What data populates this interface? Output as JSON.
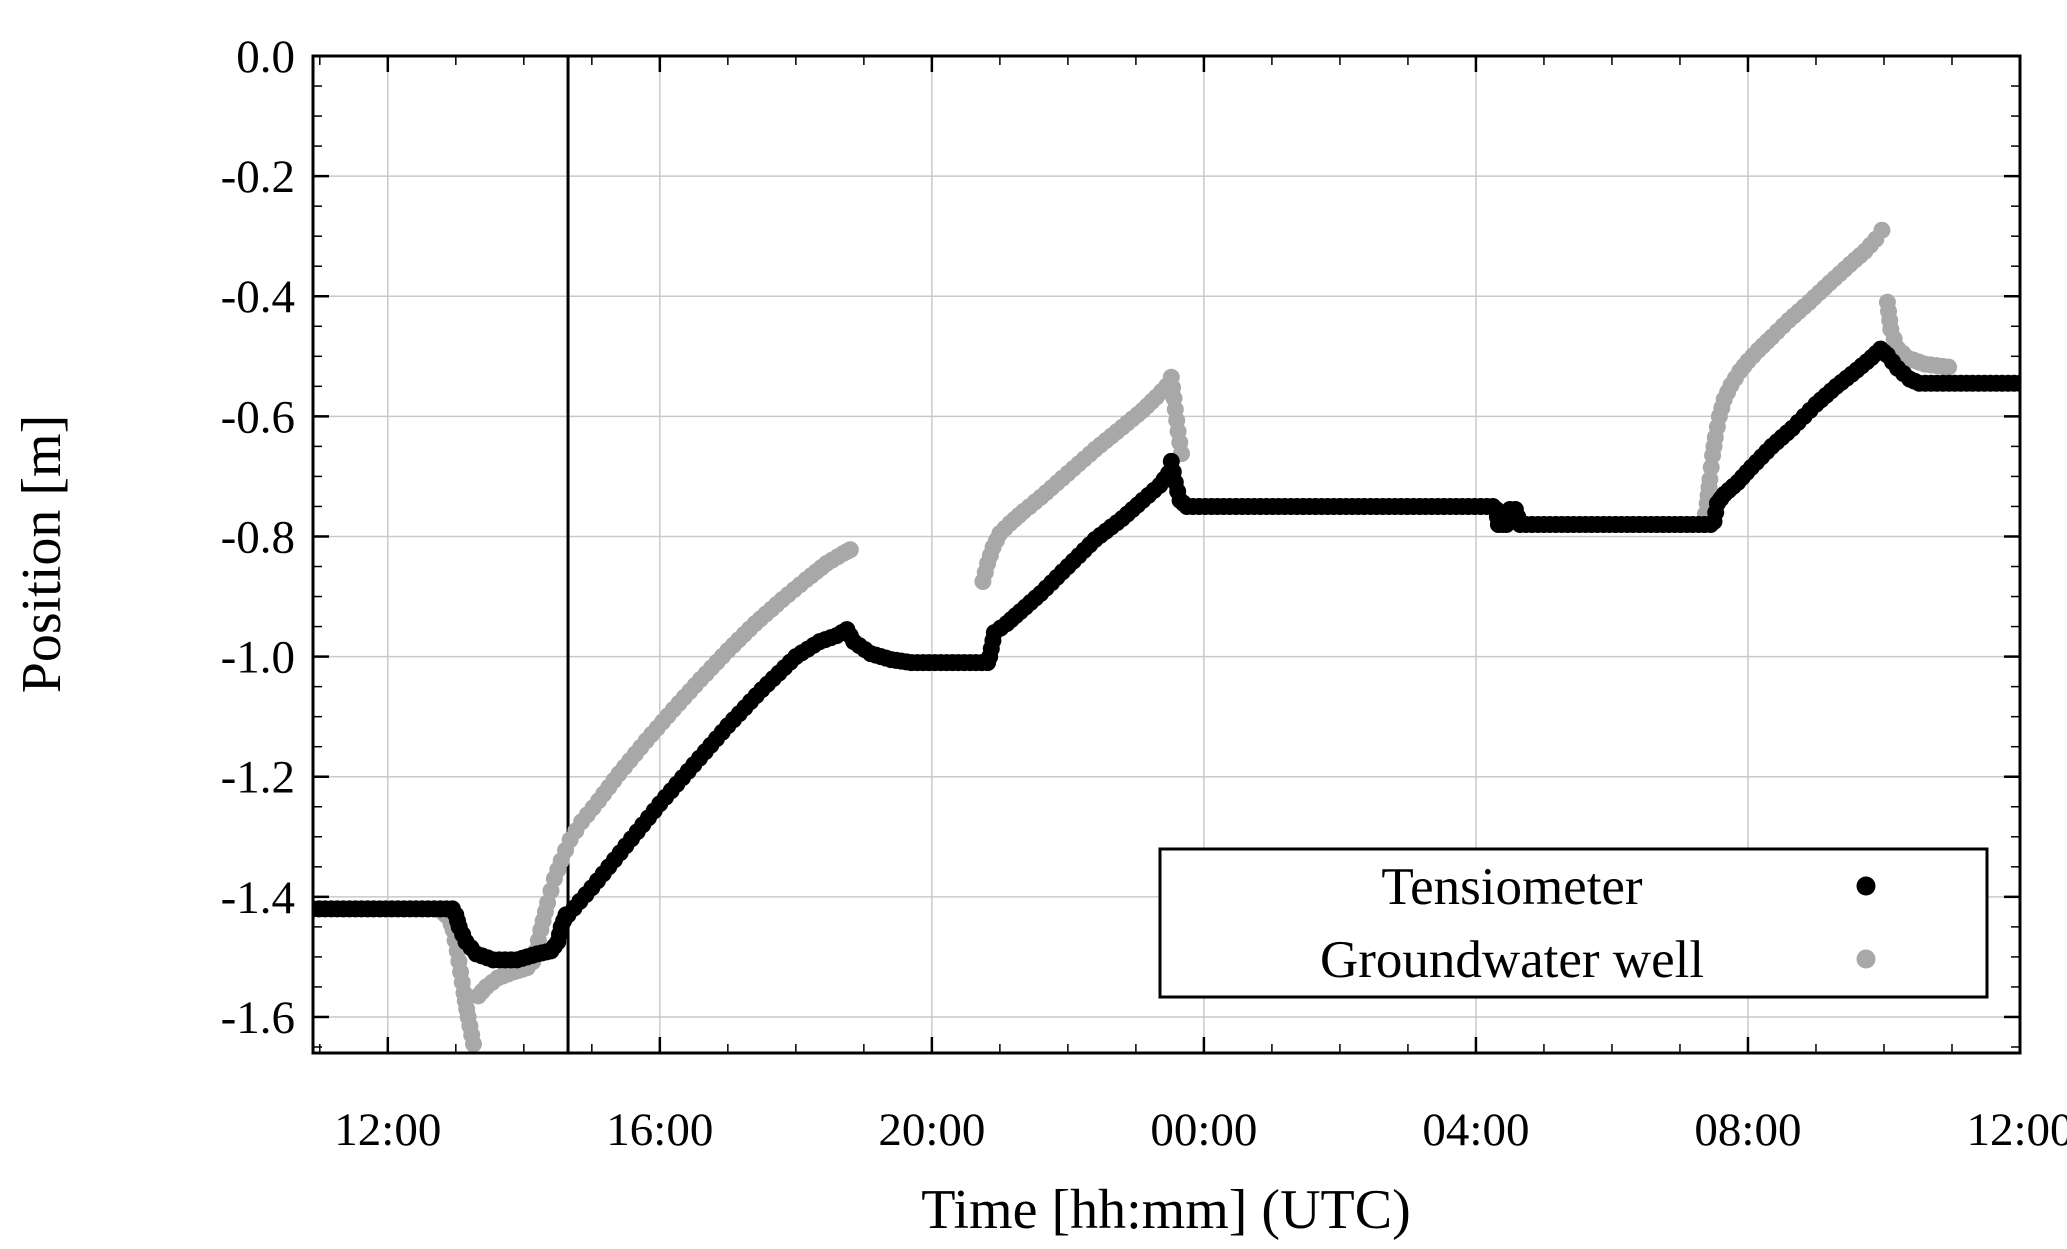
{
  "figure": {
    "background": "#ffffff",
    "axis_color": "#000000",
    "grid_color": "#c9c9c9"
  },
  "chart_data": {
    "type": "scatter",
    "title": "",
    "xlabel": "Time [hh:mm] (UTC)",
    "ylabel": "Position [m]",
    "xlim": [
      10.9,
      36.0
    ],
    "ylim": [
      -1.66,
      0.0
    ],
    "grid": true,
    "legend_position": "lower-right",
    "x_ticks": [
      {
        "value": 12,
        "label": "12:00"
      },
      {
        "value": 16,
        "label": "16:00"
      },
      {
        "value": 20,
        "label": "20:00"
      },
      {
        "value": 24,
        "label": "00:00"
      },
      {
        "value": 28,
        "label": "04:00"
      },
      {
        "value": 32,
        "label": "08:00"
      },
      {
        "value": 36,
        "label": "12:00"
      }
    ],
    "x_minor_step": 1,
    "y_ticks": [
      {
        "value": 0.0,
        "label": "0.0"
      },
      {
        "value": -0.2,
        "label": "-0.2"
      },
      {
        "value": -0.4,
        "label": "-0.4"
      },
      {
        "value": -0.6,
        "label": "-0.6"
      },
      {
        "value": -0.8,
        "label": "-0.8"
      },
      {
        "value": -1.0,
        "label": "-1.0"
      },
      {
        "value": -1.2,
        "label": "-1.2"
      },
      {
        "value": -1.4,
        "label": "-1.4"
      },
      {
        "value": -1.6,
        "label": "-1.6"
      }
    ],
    "y_minor_step": 0.05,
    "vline": {
      "x": 14.65,
      "color": "#000000",
      "width": 3
    },
    "densify": {
      "dt": 0.09,
      "dy": 0.02
    },
    "series": [
      {
        "name": "Tensiometer",
        "key": "tensiometer",
        "color": "#000000",
        "z": 2,
        "segments": [
          [
            [
              10.9,
              -1.42
            ],
            [
              12.95,
              -1.42
            ]
          ],
          [
            [
              13.0,
              -1.43
            ],
            [
              13.05,
              -1.45
            ],
            [
              13.15,
              -1.475
            ],
            [
              13.3,
              -1.495
            ],
            [
              13.55,
              -1.505
            ],
            [
              13.9,
              -1.505
            ],
            [
              14.2,
              -1.495
            ],
            [
              14.4,
              -1.49
            ],
            [
              14.5,
              -1.475
            ],
            [
              14.55,
              -1.45
            ],
            [
              14.62,
              -1.43
            ]
          ],
          [
            [
              14.65,
              -1.43
            ],
            [
              15.0,
              -1.385
            ],
            [
              15.5,
              -1.315
            ],
            [
              16.0,
              -1.245
            ],
            [
              16.5,
              -1.18
            ],
            [
              17.0,
              -1.115
            ],
            [
              17.5,
              -1.055
            ],
            [
              18.0,
              -1.0
            ],
            [
              18.35,
              -0.975
            ],
            [
              18.6,
              -0.965
            ],
            [
              18.75,
              -0.955
            ],
            [
              18.85,
              -0.975
            ],
            [
              19.1,
              -0.995
            ],
            [
              19.4,
              -1.005
            ],
            [
              19.7,
              -1.01
            ],
            [
              20.82,
              -1.01
            ]
          ],
          [
            [
              20.85,
              -1.0
            ],
            [
              20.92,
              -0.96
            ],
            [
              21.1,
              -0.945
            ],
            [
              21.3,
              -0.925
            ],
            [
              21.6,
              -0.895
            ],
            [
              22.0,
              -0.85
            ],
            [
              22.4,
              -0.805
            ],
            [
              22.8,
              -0.77
            ],
            [
              23.1,
              -0.74
            ],
            [
              23.35,
              -0.715
            ],
            [
              23.48,
              -0.695
            ],
            [
              23.52,
              -0.675
            ],
            [
              23.58,
              -0.71
            ],
            [
              23.65,
              -0.74
            ],
            [
              23.75,
              -0.75
            ],
            [
              28.25,
              -0.75
            ]
          ],
          [
            [
              28.3,
              -0.755
            ],
            [
              28.33,
              -0.78
            ],
            [
              28.45,
              -0.78
            ],
            [
              28.5,
              -0.755
            ],
            [
              28.58,
              -0.755
            ],
            [
              28.65,
              -0.78
            ],
            [
              31.45,
              -0.78
            ]
          ],
          [
            [
              31.5,
              -0.775
            ],
            [
              31.55,
              -0.745
            ],
            [
              31.65,
              -0.73
            ],
            [
              31.85,
              -0.71
            ],
            [
              32.05,
              -0.685
            ],
            [
              32.35,
              -0.65
            ],
            [
              32.65,
              -0.62
            ],
            [
              33.0,
              -0.58
            ],
            [
              33.3,
              -0.55
            ],
            [
              33.6,
              -0.523
            ],
            [
              33.82,
              -0.502
            ],
            [
              33.95,
              -0.488
            ],
            [
              34.05,
              -0.498
            ],
            [
              34.2,
              -0.52
            ],
            [
              34.38,
              -0.538
            ],
            [
              34.52,
              -0.545
            ],
            [
              36.0,
              -0.545
            ]
          ]
        ]
      },
      {
        "name": "Groundwater well",
        "key": "groundwater-well",
        "color": "#a8a8a8",
        "z": 1,
        "segments": [
          [
            [
              12.8,
              -1.425
            ],
            [
              12.9,
              -1.435
            ],
            [
              12.96,
              -1.455
            ],
            [
              13.02,
              -1.49
            ],
            [
              13.07,
              -1.525
            ],
            [
              13.12,
              -1.56
            ],
            [
              13.18,
              -1.6
            ],
            [
              13.26,
              -1.645
            ]
          ],
          [
            [
              13.33,
              -1.565
            ],
            [
              13.45,
              -1.55
            ],
            [
              13.62,
              -1.535
            ],
            [
              13.85,
              -1.525
            ],
            [
              14.05,
              -1.518
            ],
            [
              14.13,
              -1.508
            ],
            [
              14.18,
              -1.49
            ],
            [
              14.25,
              -1.455
            ],
            [
              14.35,
              -1.41
            ],
            [
              14.45,
              -1.37
            ],
            [
              14.55,
              -1.34
            ],
            [
              14.68,
              -1.305
            ],
            [
              14.85,
              -1.275
            ],
            [
              15.1,
              -1.24
            ],
            [
              15.4,
              -1.195
            ],
            [
              15.8,
              -1.14
            ],
            [
              16.2,
              -1.088
            ],
            [
              16.6,
              -1.038
            ],
            [
              17.0,
              -0.99
            ],
            [
              17.4,
              -0.945
            ],
            [
              17.8,
              -0.905
            ],
            [
              18.15,
              -0.872
            ],
            [
              18.45,
              -0.845
            ],
            [
              18.7,
              -0.828
            ],
            [
              18.8,
              -0.822
            ]
          ],
          [
            [
              20.75,
              -0.875
            ],
            [
              20.82,
              -0.845
            ],
            [
              20.9,
              -0.818
            ],
            [
              21.0,
              -0.795
            ],
            [
              21.15,
              -0.778
            ],
            [
              21.35,
              -0.758
            ],
            [
              21.6,
              -0.735
            ],
            [
              22.0,
              -0.695
            ],
            [
              22.4,
              -0.655
            ],
            [
              22.8,
              -0.618
            ],
            [
              23.1,
              -0.59
            ],
            [
              23.3,
              -0.568
            ],
            [
              23.45,
              -0.55
            ],
            [
              23.52,
              -0.535
            ],
            [
              23.56,
              -0.57
            ],
            [
              23.62,
              -0.625
            ],
            [
              23.67,
              -0.662
            ]
          ],
          [
            [
              31.35,
              -0.78
            ],
            [
              31.4,
              -0.745
            ],
            [
              31.44,
              -0.705
            ],
            [
              31.48,
              -0.665
            ],
            [
              31.52,
              -0.635
            ],
            [
              31.58,
              -0.6
            ],
            [
              31.65,
              -0.572
            ],
            [
              31.75,
              -0.548
            ],
            [
              31.88,
              -0.525
            ],
            [
              32.0,
              -0.508
            ],
            [
              32.15,
              -0.49
            ],
            [
              32.35,
              -0.468
            ],
            [
              32.6,
              -0.44
            ],
            [
              32.9,
              -0.41
            ],
            [
              33.2,
              -0.378
            ],
            [
              33.5,
              -0.347
            ],
            [
              33.72,
              -0.325
            ],
            [
              33.88,
              -0.305
            ],
            [
              33.97,
              -0.29
            ]
          ],
          [
            [
              34.05,
              -0.41
            ],
            [
              34.1,
              -0.455
            ],
            [
              34.2,
              -0.487
            ],
            [
              34.35,
              -0.503
            ],
            [
              34.6,
              -0.513
            ],
            [
              34.95,
              -0.518
            ]
          ]
        ]
      }
    ]
  }
}
